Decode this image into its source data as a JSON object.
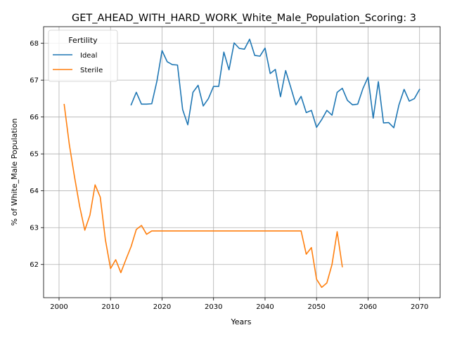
{
  "chart_data": {
    "type": "line",
    "title": "GET_AHEAD_WITH_HARD_WORK_White_Male_Population_Scoring: 3",
    "xlabel": "Years",
    "ylabel": "% of White_Male Population",
    "xlim": [
      1997,
      2074
    ],
    "ylim": [
      61.1,
      68.45
    ],
    "xticks": [
      2000,
      2010,
      2020,
      2030,
      2040,
      2050,
      2060,
      2070
    ],
    "yticks": [
      62,
      63,
      64,
      65,
      66,
      67,
      68
    ],
    "grid": true,
    "legend": {
      "title": "Fertility",
      "placement": "top-left"
    },
    "series": [
      {
        "name": "Ideal",
        "color": "#1f77b4",
        "x": [
          2014,
          2015,
          2016,
          2017,
          2018,
          2019,
          2020,
          2021,
          2022,
          2023,
          2024,
          2025,
          2026,
          2027,
          2028,
          2029,
          2030,
          2031,
          2032,
          2033,
          2034,
          2035,
          2036,
          2037,
          2038,
          2039,
          2040,
          2041,
          2042,
          2043,
          2044,
          2045,
          2046,
          2047,
          2048,
          2049,
          2050,
          2051,
          2052,
          2053,
          2054,
          2055,
          2056,
          2057,
          2058,
          2059,
          2060,
          2061,
          2062,
          2063,
          2064,
          2065,
          2066,
          2067,
          2068,
          2069,
          2070
        ],
        "y": [
          66.33,
          66.67,
          66.35,
          66.35,
          66.36,
          66.97,
          67.8,
          67.5,
          67.42,
          67.41,
          66.2,
          65.79,
          66.67,
          66.86,
          66.3,
          66.5,
          66.83,
          66.83,
          67.76,
          67.28,
          68.01,
          67.86,
          67.84,
          68.11,
          67.67,
          67.65,
          67.87,
          67.18,
          67.29,
          66.55,
          67.26,
          66.8,
          66.33,
          66.56,
          66.12,
          66.18,
          65.72,
          65.93,
          66.18,
          66.05,
          66.67,
          66.78,
          66.45,
          66.33,
          66.35,
          66.77,
          67.08,
          65.97,
          66.96,
          65.84,
          65.85,
          65.71,
          66.33,
          66.75,
          66.43,
          66.5,
          66.75
        ]
      },
      {
        "name": "Sterile",
        "color": "#ff7f0e",
        "x": [
          2001,
          2002,
          2003,
          2004,
          2005,
          2006,
          2007,
          2008,
          2009,
          2010,
          2011,
          2012,
          2013,
          2014,
          2015,
          2016,
          2017,
          2018,
          2019,
          2020,
          2021,
          2022,
          2023,
          2024,
          2025,
          2026,
          2027,
          2028,
          2029,
          2030,
          2031,
          2032,
          2033,
          2034,
          2035,
          2036,
          2037,
          2038,
          2039,
          2040,
          2041,
          2042,
          2043,
          2044,
          2045,
          2046,
          2047,
          2048,
          2049,
          2050,
          2051,
          2052,
          2053,
          2054,
          2055
        ],
        "y": [
          66.34,
          65.25,
          64.38,
          63.58,
          62.93,
          63.34,
          64.16,
          63.83,
          62.67,
          61.89,
          62.13,
          61.78,
          62.14,
          62.49,
          62.95,
          63.06,
          62.82,
          62.91,
          62.91,
          62.91,
          62.91,
          62.91,
          62.91,
          62.91,
          62.91,
          62.91,
          62.91,
          62.91,
          62.91,
          62.91,
          62.91,
          62.91,
          62.91,
          62.91,
          62.91,
          62.91,
          62.91,
          62.91,
          62.91,
          62.91,
          62.91,
          62.91,
          62.91,
          62.91,
          62.91,
          62.91,
          62.91,
          62.28,
          62.46,
          61.6,
          61.38,
          61.5,
          62.0,
          62.89,
          61.94
        ]
      }
    ]
  }
}
